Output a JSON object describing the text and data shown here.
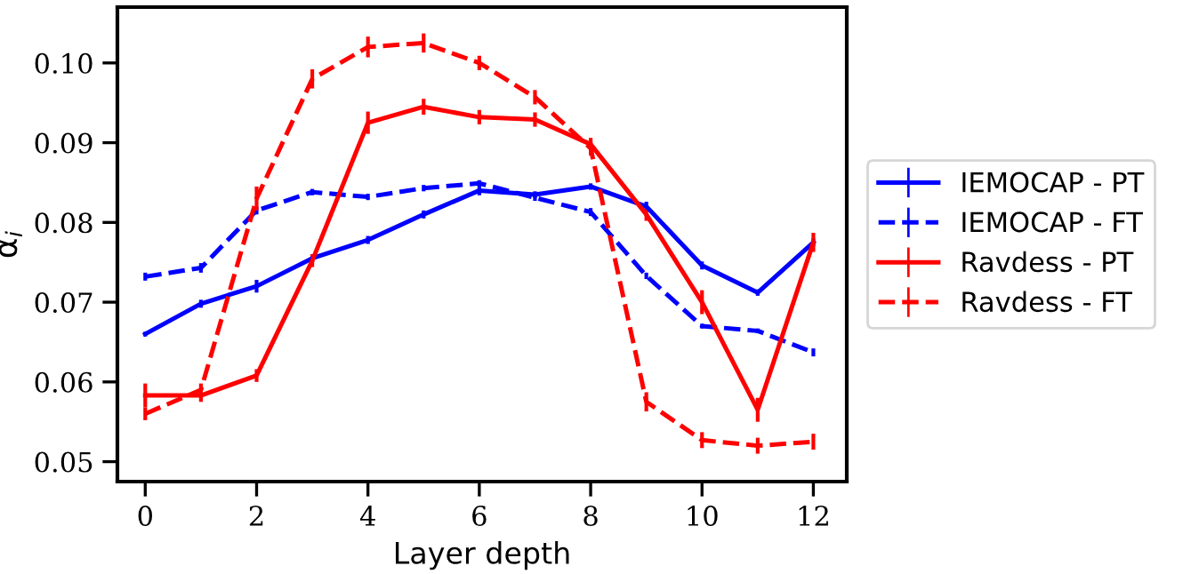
{
  "chart_data": {
    "type": "line",
    "xlabel": "Layer depth",
    "ylabel": "α$_{i}$",
    "x": [
      0,
      1,
      2,
      3,
      4,
      5,
      6,
      7,
      8,
      9,
      10,
      11,
      12
    ],
    "xlim": [
      -0.5,
      12.6
    ],
    "xticks": [
      0,
      2,
      4,
      6,
      8,
      10,
      12
    ],
    "ylim": [
      0.0475,
      0.107
    ],
    "yticks": [
      {
        "value": 0.05,
        "label": "0.05"
      },
      {
        "value": 0.06,
        "label": "0.06"
      },
      {
        "value": 0.07,
        "label": "0.07"
      },
      {
        "value": 0.08,
        "label": "0.08"
      },
      {
        "value": 0.09,
        "label": "0.09"
      },
      {
        "value": 0.1,
        "label": "0.10"
      }
    ],
    "grid": false,
    "legend": "right",
    "series": [
      {
        "name": "IEMOCAP - PT",
        "color": "#0000ff",
        "line_style": "solid",
        "values": [
          0.066,
          0.0698,
          0.072,
          0.0755,
          0.0778,
          0.081,
          0.084,
          0.0835,
          0.0845,
          0.082,
          0.0746,
          0.0712,
          0.0775
        ],
        "errors": [
          0.0003,
          0.0005,
          0.0008,
          0.0005,
          0.0005,
          0.0005,
          0.0006,
          0.0004,
          0.0004,
          0.0006,
          0.0005,
          0.0004,
          0.0005
        ]
      },
      {
        "name": "IEMOCAP - FT",
        "color": "#0000ff",
        "line_style": "dashed",
        "values": [
          0.0732,
          0.0743,
          0.0815,
          0.0838,
          0.0832,
          0.0843,
          0.0849,
          0.0831,
          0.0813,
          0.0733,
          0.067,
          0.0664,
          0.0637
        ],
        "errors": [
          0.0005,
          0.0006,
          0.0005,
          0.0004,
          0.0004,
          0.0004,
          0.0004,
          0.0004,
          0.0005,
          0.0004,
          0.0003,
          0.0003,
          0.0005
        ]
      },
      {
        "name": "Ravdess - PT",
        "color": "#ff0000",
        "line_style": "solid",
        "values": [
          0.0583,
          0.0583,
          0.0608,
          0.0752,
          0.0925,
          0.0945,
          0.0932,
          0.0929,
          0.0898,
          0.081,
          0.07,
          0.0565,
          0.0775
        ],
        "errors": [
          0.0015,
          0.0008,
          0.0008,
          0.0008,
          0.0014,
          0.001,
          0.0009,
          0.0009,
          0.0008,
          0.0008,
          0.0015,
          0.0015,
          0.0012
        ]
      },
      {
        "name": "Ravdess - FT",
        "color": "#ff0000",
        "line_style": "dashed",
        "values": [
          0.056,
          0.059,
          0.083,
          0.098,
          0.102,
          0.1025,
          0.1,
          0.0957,
          0.0893,
          0.0575,
          0.0527,
          0.052,
          0.0525
        ],
        "errors": [
          0.0008,
          0.0008,
          0.0015,
          0.0012,
          0.0013,
          0.0012,
          0.0009,
          0.0009,
          0.0009,
          0.0012,
          0.001,
          0.001,
          0.001
        ]
      }
    ]
  }
}
